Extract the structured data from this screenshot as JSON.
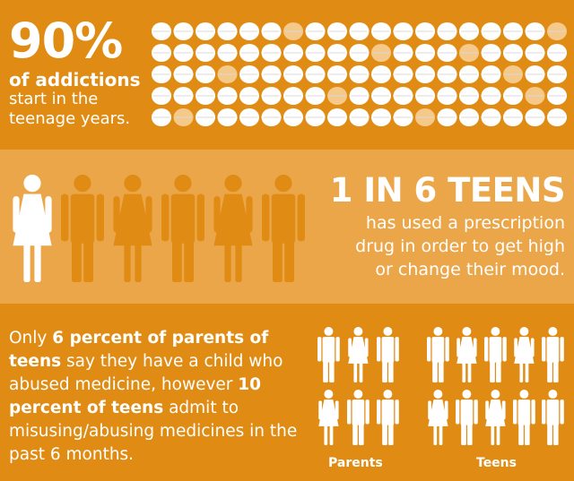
{
  "stat1": {
    "number": "90%",
    "bold_text": "of addictions",
    "lines": [
      "start in the",
      "teenage years."
    ],
    "pill_rows": 5,
    "pill_cols": 19,
    "pill_color": "#ffffff",
    "pill_highlight": "#f5c98a"
  },
  "stat2": {
    "headline": "1 IN 6 TEENS",
    "lines": [
      "has used a prescription",
      "drug in order to get high",
      "or change their mood."
    ],
    "highlight_figure_color": "#ffffff",
    "figure_color": "#e08c14"
  },
  "stat3": {
    "paragraph": {
      "t1": "Only ",
      "h1": "6 percent of parents of teens",
      "t2": " say they have a child who abused medicine, however ",
      "h2": "10 percent of teens",
      "t3": " admit to misusing/abusing medicines in the past 6 months."
    },
    "parents_label": "Parents",
    "teens_label": "Teens"
  },
  "colors": {
    "dark_orange": "#e08c14",
    "light_orange": "#eba64a",
    "white": "#ffffff"
  }
}
